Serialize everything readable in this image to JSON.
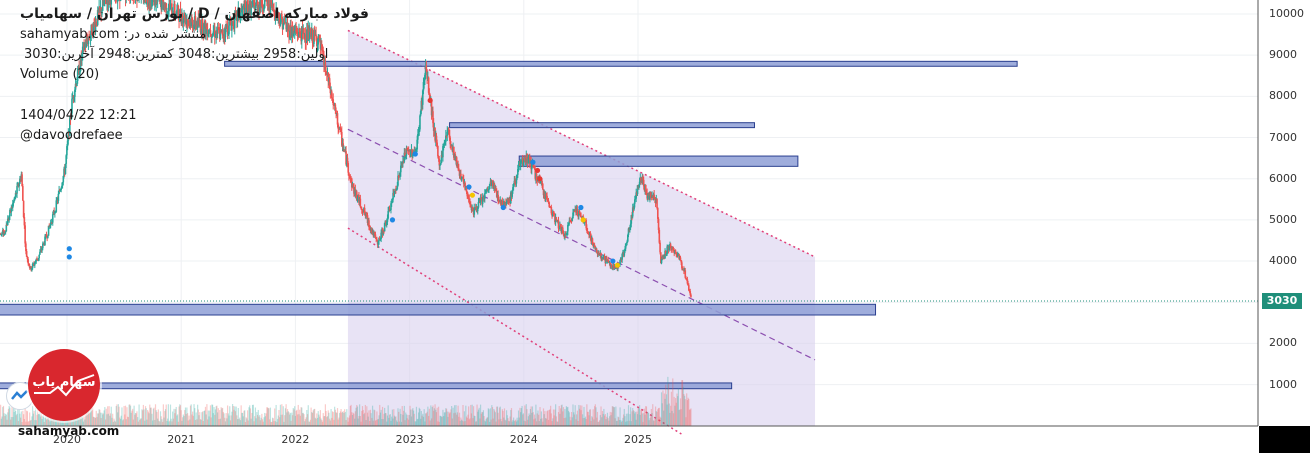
{
  "header": {
    "title": "فولاد مبارکه اصفهان / D / بورس تهران / سهامیاب",
    "published": "sahamyab.com :منتشر شده در",
    "ohlc": "اولین:2958  بیشترین:3048  کمترین:2948  آخرین:3030",
    "volume": "Volume (20)",
    "datetime": "1404/04/22 12:21",
    "author": "@davoodrefaee"
  },
  "watermark": "sahamyab.com",
  "logo_text": "سهام یاب",
  "colors": {
    "up": "#26a69a",
    "down": "#ef5350",
    "channel_fill": "#d8d0ee",
    "channel_line": "#e0407a",
    "midline": "#8c4fb0",
    "zone_fill": "#8e9fd6",
    "zone_border": "#2a3f8f",
    "last_price": "#1f8f7a"
  },
  "chart_data": {
    "type": "candlestick",
    "symbol": "فولاد مبارکه اصفهان",
    "interval": "D",
    "last_price": 3030,
    "last_price_label": "3030",
    "y_ticks": [
      "10000",
      "9000",
      "8000",
      "7000",
      "6000",
      "5000",
      "4000",
      "3000",
      "2000",
      "1000"
    ],
    "y_tick_values": [
      10000,
      9000,
      8000,
      7000,
      6000,
      5000,
      4000,
      3000,
      2000,
      1000
    ],
    "x_ticks": [
      "2020",
      "2021",
      "2022",
      "2023",
      "2024",
      "2025"
    ],
    "ylim": [
      0,
      10300
    ],
    "price_path": [
      [
        2019.0,
        4700
      ],
      [
        2019.08,
        4300
      ],
      [
        2019.16,
        3800
      ],
      [
        2019.25,
        4200
      ],
      [
        2019.35,
        4500
      ],
      [
        2019.45,
        4700
      ],
      [
        2019.55,
        5600
      ],
      [
        2019.6,
        6100
      ],
      [
        2019.64,
        4200
      ],
      [
        2019.68,
        3800
      ],
      [
        2019.75,
        4100
      ],
      [
        2019.82,
        4600
      ],
      [
        2019.9,
        5300
      ],
      [
        2019.98,
        6200
      ],
      [
        2020.05,
        8000
      ],
      [
        2020.15,
        9200
      ],
      [
        2020.35,
        10400
      ],
      [
        2020.55,
        10600
      ],
      [
        2020.8,
        10300
      ],
      [
        2021.1,
        9800
      ],
      [
        2021.35,
        9500
      ],
      [
        2021.55,
        10100
      ],
      [
        2021.75,
        10300
      ],
      [
        2021.95,
        9600
      ],
      [
        2022.2,
        9400
      ],
      [
        2022.5,
        5800
      ],
      [
        2022.6,
        5200
      ],
      [
        2022.72,
        4400
      ],
      [
        2022.8,
        5000
      ],
      [
        2022.88,
        5800
      ],
      [
        2022.96,
        6600
      ],
      [
        2023.06,
        6700
      ],
      [
        2023.14,
        8700
      ],
      [
        2023.18,
        7900
      ],
      [
        2023.26,
        6300
      ],
      [
        2023.33,
        7200
      ],
      [
        2023.4,
        6500
      ],
      [
        2023.48,
        5800
      ],
      [
        2023.56,
        5200
      ],
      [
        2023.64,
        5500
      ],
      [
        2023.72,
        5900
      ],
      [
        2023.8,
        5400
      ],
      [
        2023.88,
        5500
      ],
      [
        2023.96,
        6300
      ],
      [
        2024.04,
        6500
      ],
      [
        2024.1,
        6100
      ],
      [
        2024.16,
        5800
      ],
      [
        2024.26,
        5100
      ],
      [
        2024.36,
        4600
      ],
      [
        2024.45,
        5300
      ],
      [
        2024.54,
        4900
      ],
      [
        2024.62,
        4300
      ],
      [
        2024.72,
        4000
      ],
      [
        2024.8,
        3800
      ],
      [
        2024.88,
        4200
      ],
      [
        2024.96,
        5300
      ],
      [
        2025.02,
        6100
      ],
      [
        2025.08,
        5600
      ],
      [
        2025.16,
        5500
      ],
      [
        2025.2,
        4000
      ],
      [
        2025.28,
        4400
      ],
      [
        2025.36,
        4100
      ],
      [
        2025.42,
        3600
      ],
      [
        2025.47,
        3100
      ]
    ],
    "channel": {
      "upper": [
        [
          2022.46,
          9600
        ],
        [
          2026.55,
          4100
        ]
      ],
      "mid": [
        [
          2022.46,
          7200
        ],
        [
          2026.55,
          1600
        ]
      ],
      "lower": [
        [
          2022.46,
          4800
        ],
        [
          2025.38,
          -200
        ]
      ],
      "fill_x": [
        2022.46,
        2026.55
      ]
    },
    "zones": [
      {
        "x0": 2021.38,
        "x1": 2028.32,
        "y0": 8730,
        "y1": 8850
      },
      {
        "x0": 2023.35,
        "x1": 2026.02,
        "y0": 7240,
        "y1": 7360
      },
      {
        "x0": 2023.96,
        "x1": 2026.4,
        "y0": 6300,
        "y1": 6550
      },
      {
        "x0": 2018.99,
        "x1": 2027.08,
        "y0": 2690,
        "y1": 2950
      },
      {
        "x0": 2018.99,
        "x1": 2025.82,
        "y0": 900,
        "y1": 1040
      }
    ],
    "volume_note": "Volume (20)"
  }
}
